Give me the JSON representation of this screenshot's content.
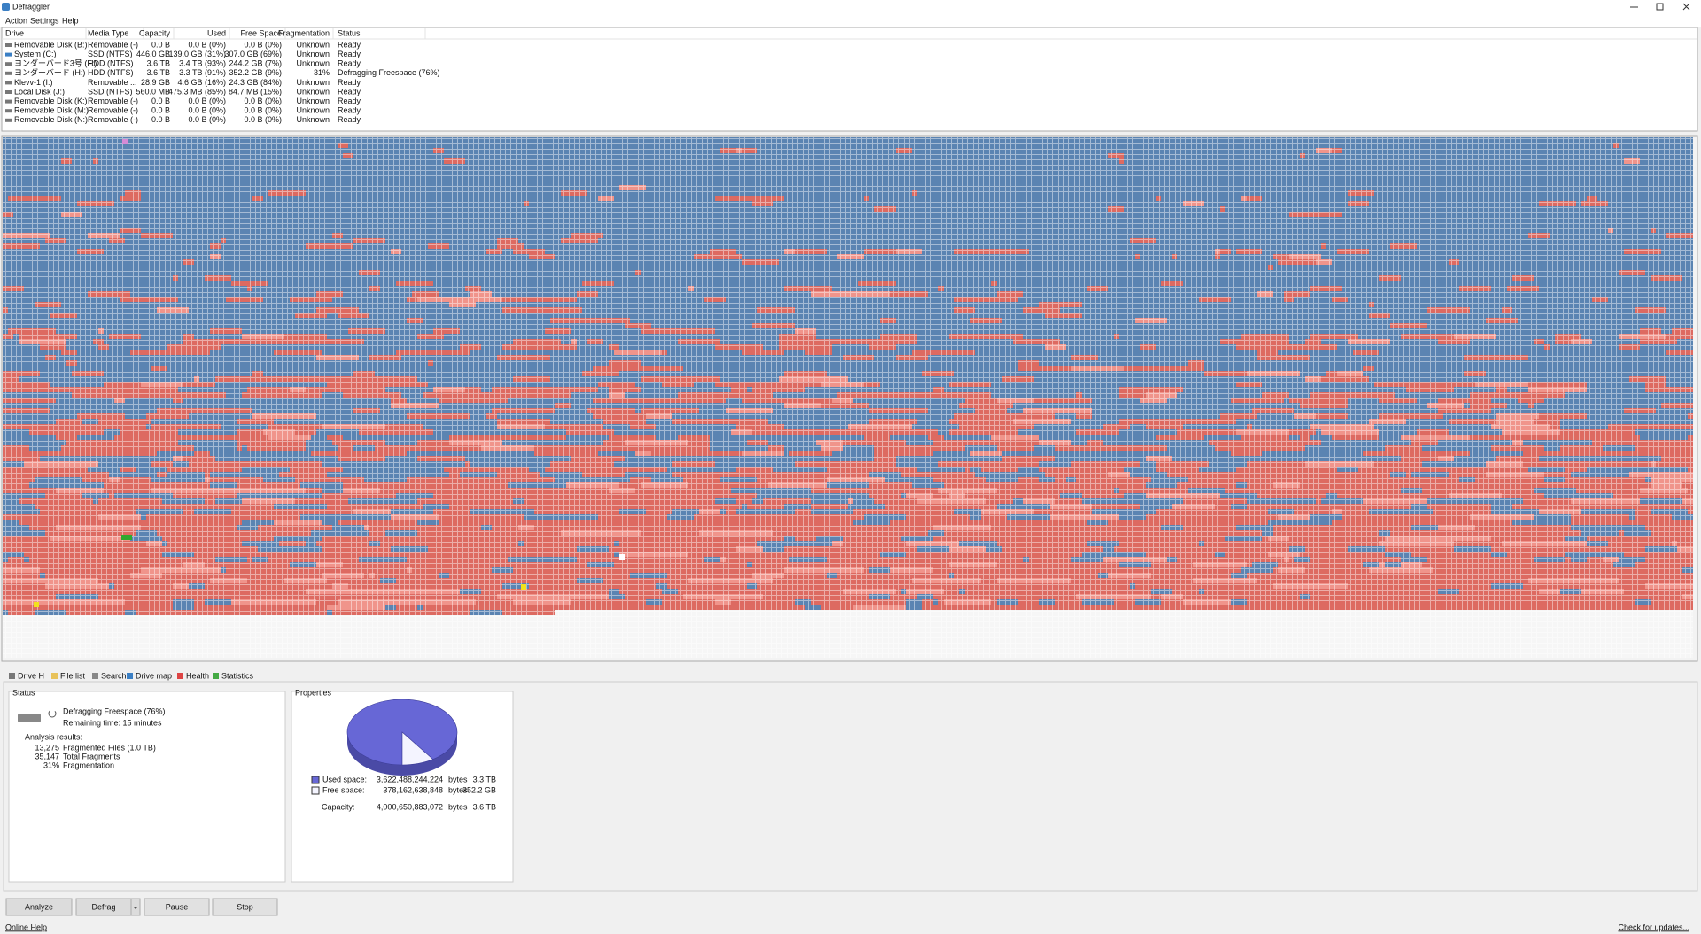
{
  "window": {
    "title": "Defraggler",
    "menu": [
      "Action",
      "Settings",
      "Help"
    ]
  },
  "drive_table": {
    "columns": [
      "Drive",
      "Media Type",
      "Capacity",
      "Used",
      "Free Space",
      "Fragmentation",
      "Status"
    ],
    "rows": [
      [
        "Removable Disk (B:)",
        "Removable (-)",
        "0.0 B",
        "0.0 B (0%)",
        "0.0 B (0%)",
        "Unknown",
        "Ready"
      ],
      [
        "System (C:)",
        "SSD (NTFS)",
        "446.0 GB",
        "139.0 GB (31%)",
        "307.0 GB (69%)",
        "Unknown",
        "Ready"
      ],
      [
        "ヨンダーバード3号 (F:)",
        "HDD (NTFS)",
        "3.6 TB",
        "3.4 TB (93%)",
        "244.2 GB (7%)",
        "Unknown",
        "Ready"
      ],
      [
        "ヨンダーバード (H:)",
        "HDD (NTFS)",
        "3.6 TB",
        "3.3 TB (91%)",
        "352.2 GB (9%)",
        "31%",
        "Defragging Freespace (76%)"
      ],
      [
        "Klevv-1 (I:)",
        "Removable ...",
        "28.9 GB",
        "4.6 GB (16%)",
        "24.3 GB (84%)",
        "Unknown",
        "Ready"
      ],
      [
        "Local Disk (J:)",
        "SSD (NTFS)",
        "560.0 MB",
        "475.3 MB (85%)",
        "84.7 MB (15%)",
        "Unknown",
        "Ready"
      ],
      [
        "Removable Disk (K:)",
        "Removable (-)",
        "0.0 B",
        "0.0 B (0%)",
        "0.0 B (0%)",
        "Unknown",
        "Ready"
      ],
      [
        "Removable Disk (M:)",
        "Removable (-)",
        "0.0 B",
        "0.0 B (0%)",
        "0.0 B (0%)",
        "Unknown",
        "Ready"
      ],
      [
        "Removable Disk (N:)",
        "Removable (-)",
        "0.0 B",
        "0.0 B (0%)",
        "0.0 B (0%)",
        "Unknown",
        "Ready"
      ]
    ]
  },
  "tabs": [
    "Drive H",
    "File list",
    "Search",
    "Drive map",
    "Health",
    "Statistics"
  ],
  "status": {
    "heading": "Status",
    "state": "Defragging Freespace (76%)",
    "remaining": "Remaining time: 15 minutes",
    "analysis_heading": "Analysis results:",
    "results": [
      [
        "13,275",
        "Fragmented Files (1.0 TB)"
      ],
      [
        "35,147",
        "Total Fragments"
      ],
      [
        "31%",
        "Fragmentation"
      ]
    ]
  },
  "properties": {
    "heading": "Properties",
    "rows": [
      {
        "label": "Used space:",
        "bytes": {
          "value": 3622488244224,
          "label": "3,622,488,244,224"
        },
        "unit": "bytes",
        "size": "3.3 TB",
        "color": "#6767d6"
      },
      {
        "label": "Free space:",
        "bytes": {
          "value": 378162638848,
          "label": "378,162,638,848"
        },
        "unit": "bytes",
        "size": "352.2 GB",
        "color": "#f4f4ff"
      },
      {
        "label": "Capacity:",
        "bytes": {
          "value": 4000650883072,
          "label": "4,000,650,883,072"
        },
        "unit": "bytes",
        "size": "3.6 TB"
      }
    ]
  },
  "buttons": [
    "Analyze",
    "Defrag",
    "Pause",
    "Stop"
  ],
  "links": {
    "help": "Online Help",
    "updates": "Check for updates..."
  }
}
